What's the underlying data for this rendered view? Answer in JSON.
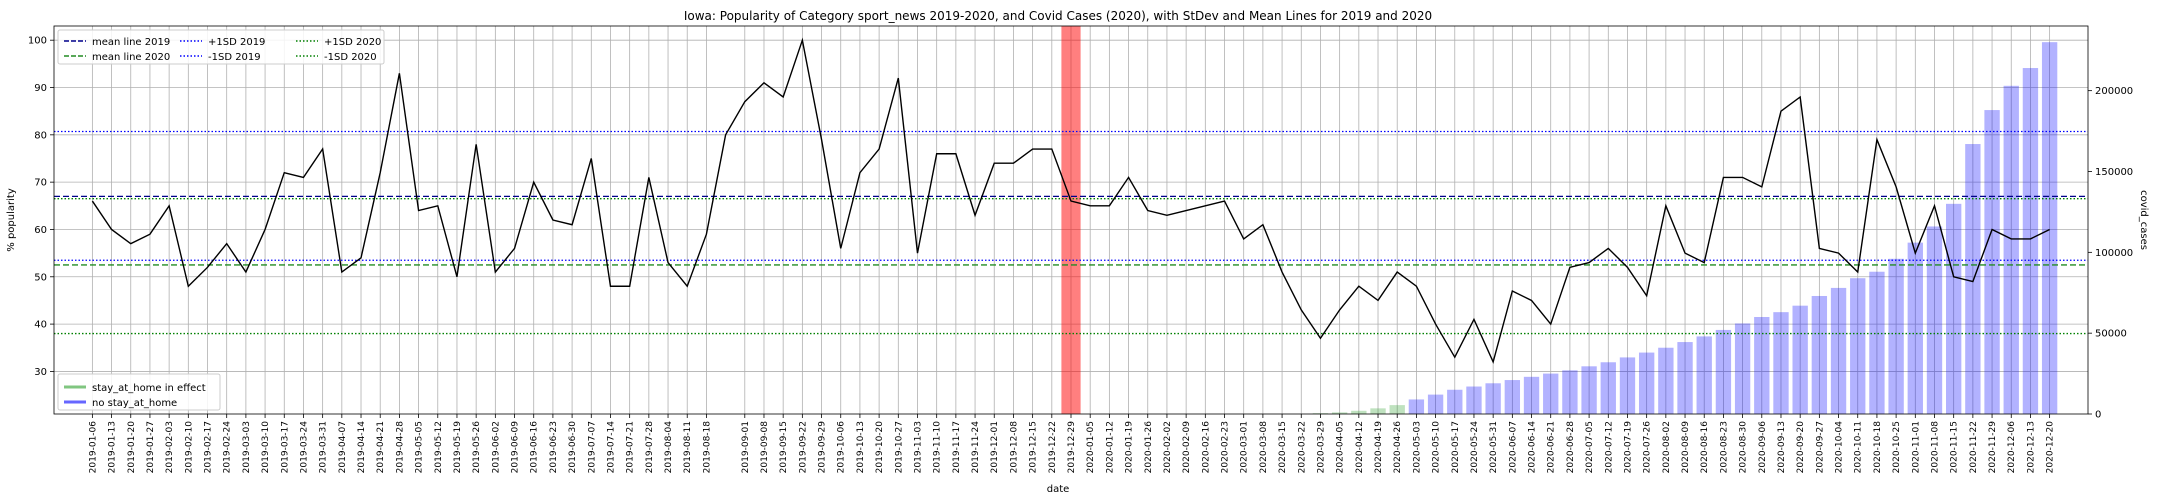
{
  "chart_data": {
    "type": "line",
    "title": "Iowa: Popularity of Category sport_news 2019-2020, and Covid Cases (2020), with StDev and Mean Lines for 2019 and 2020",
    "xlabel": "date",
    "ylabel": "% popularity",
    "y2label": "covid_cases",
    "ylim": [
      21,
      103
    ],
    "y2lim": [
      0,
      240000
    ],
    "yticks": [
      30,
      40,
      50,
      60,
      70,
      80,
      90,
      100
    ],
    "y2ticks": [
      0,
      50000,
      100000,
      150000,
      200000
    ],
    "grid": true,
    "legend_top": {
      "placement": "top-left",
      "entries": [
        {
          "label": "mean line 2019",
          "color": "#00008b",
          "style": "dashed"
        },
        {
          "label": "mean line 2020",
          "color": "#228b22",
          "style": "dashed"
        },
        {
          "label": "+1SD 2019",
          "color": "#0000ff",
          "style": "dotted"
        },
        {
          "label": "-1SD 2019",
          "color": "#0000ff",
          "style": "dotted"
        },
        {
          "label": "+1SD 2020",
          "color": "#008000",
          "style": "dotted"
        },
        {
          "label": "-1SD 2020",
          "color": "#008000",
          "style": "dotted"
        }
      ]
    },
    "legend_bottom": {
      "placement": "bottom-left",
      "entries": [
        {
          "label": "stay_at_home in effect",
          "color": "#2ca02c"
        },
        {
          "label": "no stay_at_home",
          "color": "#0000ff"
        }
      ]
    },
    "reference_lines": {
      "mean_2019": 67,
      "mean_2020": 52.5,
      "plus1sd_2019": 80.7,
      "minus1sd_2019": 53.5,
      "plus1sd_2020": 66.5,
      "minus1sd_2020": 38
    },
    "highlight_band": {
      "from": "2019-12-29",
      "to": "2020-01-05",
      "color": "#ff0000"
    },
    "x": [
      "2019-01-06",
      "2019-01-13",
      "2019-01-20",
      "2019-01-27",
      "2019-02-03",
      "2019-02-10",
      "2019-02-17",
      "2019-02-24",
      "2019-03-03",
      "2019-03-10",
      "2019-03-17",
      "2019-03-24",
      "2019-03-31",
      "2019-04-07",
      "2019-04-14",
      "2019-04-21",
      "2019-04-28",
      "2019-05-05",
      "2019-05-12",
      "2019-05-19",
      "2019-05-26",
      "2019-06-02",
      "2019-06-09",
      "2019-06-16",
      "2019-06-23",
      "2019-06-30",
      "2019-07-07",
      "2019-07-14",
      "2019-07-21",
      "2019-07-28",
      "2019-08-04",
      "2019-08-11",
      "2019-08-18",
      "2019-08-25",
      "2019-09-01",
      "2019-09-08",
      "2019-09-15",
      "2019-09-22",
      "2019-09-29",
      "2019-10-06",
      "2019-10-13",
      "2019-10-20",
      "2019-10-27",
      "2019-11-03",
      "2019-11-10",
      "2019-11-17",
      "2019-11-24",
      "2019-12-01",
      "2019-12-08",
      "2019-12-15",
      "2019-12-22",
      "2019-12-29",
      "2020-01-05",
      "2020-01-12",
      "2020-01-19",
      "2020-01-26",
      "2020-02-02",
      "2020-02-09",
      "2020-02-16",
      "2020-02-23",
      "2020-03-01",
      "2020-03-08",
      "2020-03-15",
      "2020-03-22",
      "2020-03-29",
      "2020-04-05",
      "2020-04-12",
      "2020-04-19",
      "2020-04-26",
      "2020-05-03",
      "2020-05-10",
      "2020-05-17",
      "2020-05-24",
      "2020-05-31",
      "2020-06-07",
      "2020-06-14",
      "2020-06-21",
      "2020-06-28",
      "2020-07-05",
      "2020-07-12",
      "2020-07-19",
      "2020-07-26",
      "2020-08-02",
      "2020-08-09",
      "2020-08-16",
      "2020-08-23",
      "2020-08-30",
      "2020-09-06",
      "2020-09-13",
      "2020-09-20",
      "2020-09-27",
      "2020-10-04",
      "2020-10-11",
      "2020-10-18",
      "2020-10-25",
      "2020-11-01",
      "2020-11-08",
      "2020-11-15",
      "2020-11-22",
      "2020-11-29",
      "2020-12-06",
      "2020-12-13",
      "2020-12-20"
    ],
    "xticks": [
      "2019-01-06",
      "2019-01-13",
      "2019-01-20",
      "2019-01-27",
      "2019-02-03",
      "2019-02-10",
      "2019-02-17",
      "2019-02-24",
      "2019-03-03",
      "2019-03-10",
      "2019-03-17",
      "2019-03-24",
      "2019-03-31",
      "2019-04-07",
      "2019-04-14",
      "2019-04-21",
      "2019-04-28",
      "2019-05-05",
      "2019-05-12",
      "2019-05-19",
      "2019-05-26",
      "2019-06-02",
      "2019-06-09",
      "2019-06-16",
      "2019-06-23",
      "2019-06-30",
      "2019-07-07",
      "2019-07-14",
      "2019-07-21",
      "2019-07-28",
      "2019-08-04",
      "2019-08-11",
      "2019-08-18",
      "2019-09-01",
      "2019-09-08",
      "2019-09-15",
      "2019-09-22",
      "2019-09-29",
      "2019-10-06",
      "2019-10-13",
      "2019-10-20",
      "2019-10-27",
      "2019-11-03",
      "2019-11-10",
      "2019-11-17",
      "2019-11-24",
      "2019-12-01",
      "2019-12-08",
      "2019-12-15",
      "2019-12-22",
      "2019-12-29",
      "2020-01-05",
      "2020-01-12",
      "2020-01-19",
      "2020-01-26",
      "2020-02-02",
      "2020-02-09",
      "2020-02-16",
      "2020-02-23",
      "2020-03-01",
      "2020-03-08",
      "2020-03-15",
      "2020-03-22",
      "2020-03-29",
      "2020-04-05",
      "2020-04-12",
      "2020-04-19",
      "2020-04-26",
      "2020-05-03",
      "2020-05-10",
      "2020-05-17",
      "2020-05-24",
      "2020-05-31",
      "2020-06-07",
      "2020-06-14",
      "2020-06-21",
      "2020-06-28",
      "2020-07-05",
      "2020-07-12",
      "2020-07-19",
      "2020-07-26",
      "2020-08-02",
      "2020-08-09",
      "2020-08-16",
      "2020-08-23",
      "2020-08-30",
      "2020-09-06",
      "2020-09-13",
      "2020-09-20",
      "2020-09-27",
      "2020-10-04",
      "2020-10-11",
      "2020-10-18",
      "2020-10-25",
      "2020-11-01",
      "2020-11-08",
      "2020-11-15",
      "2020-11-22",
      "2020-11-29",
      "2020-12-06",
      "2020-12-13",
      "2020-12-20"
    ],
    "series": [
      {
        "name": "% popularity",
        "color": "#000000",
        "values": [
          66,
          60,
          57,
          59,
          65,
          48,
          52,
          57,
          51,
          60,
          72,
          71,
          77,
          51,
          54,
          72,
          93,
          64,
          65,
          50,
          78,
          51,
          56,
          70,
          62,
          61,
          75,
          48,
          48,
          71,
          53,
          48,
          59,
          80,
          87,
          91,
          88,
          100,
          79,
          56,
          72,
          77,
          92,
          55,
          76,
          76,
          63,
          74,
          74,
          77,
          77,
          66,
          65,
          65,
          71,
          64,
          63,
          64,
          65,
          66,
          58,
          61,
          51,
          43,
          37,
          43,
          48,
          45,
          51,
          48,
          40,
          33,
          41,
          32,
          47,
          45,
          40,
          52,
          53,
          56,
          52,
          46,
          65,
          55,
          53,
          71,
          71,
          69,
          85,
          88,
          56,
          55,
          51,
          79,
          69,
          55,
          65,
          50,
          49,
          60,
          58,
          58,
          60
        ]
      },
      {
        "name": "covid_cases",
        "type": "bar",
        "axis": "right",
        "x": [
          "2020-03-29",
          "2020-04-05",
          "2020-04-12",
          "2020-04-19",
          "2020-04-26",
          "2020-05-03",
          "2020-05-10",
          "2020-05-17",
          "2020-05-24",
          "2020-05-31",
          "2020-06-07",
          "2020-06-14",
          "2020-06-21",
          "2020-06-28",
          "2020-07-05",
          "2020-07-12",
          "2020-07-19",
          "2020-07-26",
          "2020-08-02",
          "2020-08-09",
          "2020-08-16",
          "2020-08-23",
          "2020-08-30",
          "2020-09-06",
          "2020-09-13",
          "2020-09-20",
          "2020-09-27",
          "2020-10-04",
          "2020-10-11",
          "2020-10-18",
          "2020-10-25",
          "2020-11-01",
          "2020-11-08",
          "2020-11-15",
          "2020-11-22",
          "2020-11-29",
          "2020-12-06",
          "2020-12-13",
          "2020-12-20"
        ],
        "values": [
          500,
          1000,
          2000,
          3500,
          5500,
          9000,
          12000,
          15000,
          17000,
          19000,
          21000,
          23000,
          25000,
          27000,
          29500,
          32000,
          35000,
          38000,
          41000,
          44500,
          48000,
          52000,
          56000,
          60000,
          63000,
          67000,
          73000,
          78000,
          84000,
          88000,
          96000,
          106000,
          116000,
          130000,
          167000,
          188000,
          203000,
          214000,
          230000
        ],
        "colors": [
          "#2ca02c",
          "#2ca02c",
          "#2ca02c",
          "#2ca02c",
          "#2ca02c",
          "#0000ff",
          "#0000ff",
          "#0000ff",
          "#0000ff",
          "#0000ff",
          "#0000ff",
          "#0000ff",
          "#0000ff",
          "#0000ff",
          "#0000ff",
          "#0000ff",
          "#0000ff",
          "#0000ff",
          "#0000ff",
          "#0000ff",
          "#0000ff",
          "#0000ff",
          "#0000ff",
          "#0000ff",
          "#0000ff",
          "#0000ff",
          "#0000ff",
          "#0000ff",
          "#0000ff",
          "#0000ff",
          "#0000ff",
          "#0000ff",
          "#0000ff",
          "#0000ff",
          "#0000ff",
          "#0000ff",
          "#0000ff",
          "#0000ff",
          "#0000ff"
        ]
      }
    ]
  }
}
